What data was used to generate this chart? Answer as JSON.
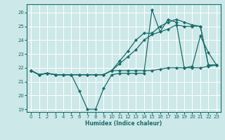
{
  "xlabel": "Humidex (Indice chaleur)",
  "background_color": "#cde8e8",
  "grid_color": "#ffffff",
  "line_color": "#1a6b6b",
  "xlim": [
    -0.5,
    23.5
  ],
  "ylim": [
    18.8,
    26.6
  ],
  "xticks": [
    0,
    1,
    2,
    3,
    4,
    5,
    6,
    7,
    8,
    9,
    10,
    11,
    12,
    13,
    14,
    15,
    16,
    17,
    18,
    19,
    20,
    21,
    22,
    23
  ],
  "yticks": [
    19,
    20,
    21,
    22,
    23,
    24,
    25,
    26
  ],
  "series": [
    {
      "x": [
        0,
        1,
        2,
        3,
        4,
        5,
        6,
        7,
        8,
        9,
        10,
        11,
        12,
        13,
        14,
        15,
        16,
        17,
        18,
        19,
        20,
        21,
        22,
        23
      ],
      "y": [
        21.8,
        21.5,
        21.6,
        21.5,
        21.5,
        21.5,
        20.3,
        19.0,
        19.0,
        20.5,
        21.5,
        21.6,
        21.6,
        21.6,
        21.6,
        26.2,
        24.6,
        25.5,
        25.3,
        22.0,
        22.1,
        24.3,
        23.1,
        22.2
      ]
    },
    {
      "x": [
        0,
        1,
        2,
        3,
        4,
        5,
        6,
        7,
        8,
        9,
        10,
        11,
        12,
        13,
        14,
        15,
        16,
        17,
        18,
        19,
        20,
        21,
        22,
        23
      ],
      "y": [
        21.8,
        21.5,
        21.6,
        21.5,
        21.5,
        21.5,
        21.5,
        21.5,
        21.5,
        21.5,
        21.8,
        22.3,
        22.8,
        23.3,
        24.0,
        24.4,
        24.6,
        24.8,
        25.1,
        25.0,
        25.0,
        25.0,
        22.2,
        22.2
      ]
    },
    {
      "x": [
        0,
        1,
        2,
        3,
        4,
        5,
        6,
        7,
        8,
        9,
        10,
        11,
        12,
        13,
        14,
        15,
        16,
        17,
        18,
        19,
        20,
        21,
        22,
        23
      ],
      "y": [
        21.8,
        21.5,
        21.6,
        21.5,
        21.5,
        21.5,
        21.5,
        21.5,
        21.5,
        21.5,
        21.8,
        22.5,
        23.2,
        24.0,
        24.5,
        24.5,
        25.0,
        25.3,
        25.5,
        25.3,
        25.1,
        25.0,
        22.2,
        22.2
      ]
    },
    {
      "x": [
        0,
        1,
        2,
        3,
        4,
        5,
        6,
        7,
        8,
        9,
        10,
        11,
        12,
        13,
        14,
        15,
        16,
        17,
        18,
        19,
        20,
        21,
        22,
        23
      ],
      "y": [
        21.8,
        21.5,
        21.6,
        21.5,
        21.5,
        21.5,
        21.5,
        21.5,
        21.5,
        21.5,
        21.8,
        21.8,
        21.8,
        21.8,
        21.8,
        21.8,
        21.9,
        22.0,
        22.0,
        22.0,
        22.0,
        22.0,
        22.1,
        22.2
      ]
    }
  ]
}
